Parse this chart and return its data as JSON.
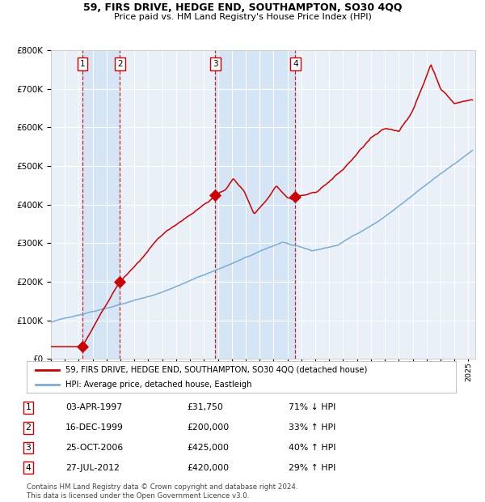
{
  "title": "59, FIRS DRIVE, HEDGE END, SOUTHAMPTON, SO30 4QQ",
  "subtitle": "Price paid vs. HM Land Registry's House Price Index (HPI)",
  "legend_label_red": "59, FIRS DRIVE, HEDGE END, SOUTHAMPTON, SO30 4QQ (detached house)",
  "legend_label_blue": "HPI: Average price, detached house, Eastleigh",
  "footer1": "Contains HM Land Registry data © Crown copyright and database right 2024.",
  "footer2": "This data is licensed under the Open Government Licence v3.0.",
  "transactions": [
    {
      "num": 1,
      "date": "03-APR-1997",
      "price": 31750,
      "pct": "71%",
      "dir": "↓",
      "year": 1997.25
    },
    {
      "num": 2,
      "date": "16-DEC-1999",
      "price": 200000,
      "pct": "33%",
      "dir": "↑",
      "year": 1999.96
    },
    {
      "num": 3,
      "date": "25-OCT-2006",
      "price": 425000,
      "pct": "40%",
      "dir": "↑",
      "year": 2006.81
    },
    {
      "num": 4,
      "date": "27-JUL-2012",
      "price": 420000,
      "pct": "29%",
      "dir": "↑",
      "year": 2012.57
    }
  ],
  "background_color": "#ffffff",
  "plot_bg_color": "#eaf0f8",
  "grid_color": "#ffffff",
  "red_color": "#cc0000",
  "blue_color": "#7aadd4",
  "highlight_color": "#d5e5f5",
  "vline_color": "#cc0000",
  "ylim": [
    0,
    800000
  ],
  "xlim_start": 1995.0,
  "xlim_end": 2025.5,
  "table_rows": [
    [
      "1",
      "03-APR-1997",
      "£31,750",
      "71% ↓ HPI"
    ],
    [
      "2",
      "16-DEC-1999",
      "£200,000",
      "33% ↑ HPI"
    ],
    [
      "3",
      "25-OCT-2006",
      "£425,000",
      "40% ↑ HPI"
    ],
    [
      "4",
      "27-JUL-2012",
      "£420,000",
      "29% ↑ HPI"
    ]
  ]
}
